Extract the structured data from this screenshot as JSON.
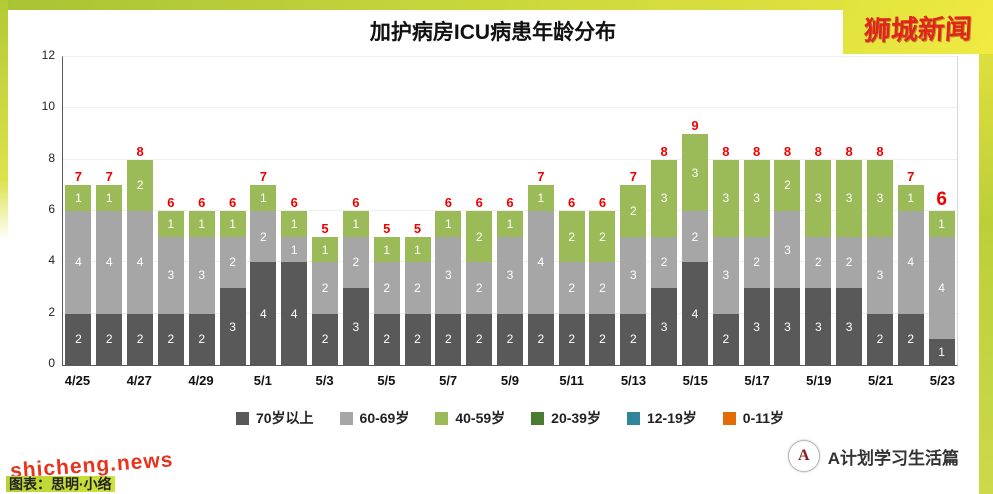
{
  "header": {
    "brand": "狮城新闻"
  },
  "chart_data": {
    "type": "bar",
    "stacked": true,
    "title": "加护病房ICU病患年龄分布",
    "x": [
      "4/25",
      "4/26",
      "4/27",
      "4/28",
      "4/29",
      "4/30",
      "5/1",
      "5/2",
      "5/3",
      "5/4",
      "5/5",
      "5/6",
      "5/7",
      "5/8",
      "5/9",
      "5/10",
      "5/11",
      "5/12",
      "5/13",
      "5/14",
      "5/15",
      "5/16",
      "5/17",
      "5/18",
      "5/19",
      "5/20",
      "5/21",
      "5/22",
      "5/23"
    ],
    "x_tick_step": 2,
    "ylim": [
      0,
      12
    ],
    "yticks": [
      0,
      2,
      4,
      6,
      8,
      10,
      12
    ],
    "grid": true,
    "legend_position": "bottom",
    "total_label_color": "#f00000",
    "emphasize_last_total": true,
    "series": [
      {
        "name": "70岁以上",
        "color": "#595959",
        "values": [
          2,
          2,
          2,
          2,
          2,
          3,
          4,
          4,
          2,
          3,
          2,
          2,
          2,
          2,
          2,
          2,
          2,
          2,
          2,
          3,
          4,
          2,
          3,
          3,
          3,
          3,
          2,
          2,
          1
        ]
      },
      {
        "name": "60-69岁",
        "color": "#a6a6a6",
        "values": [
          4,
          4,
          4,
          3,
          3,
          2,
          2,
          1,
          2,
          2,
          2,
          2,
          3,
          2,
          3,
          4,
          2,
          2,
          3,
          2,
          2,
          3,
          2,
          3,
          2,
          2,
          3,
          4,
          4
        ]
      },
      {
        "name": "40-59岁",
        "color": "#9bbb59",
        "values": [
          1,
          1,
          2,
          1,
          1,
          1,
          1,
          1,
          1,
          1,
          1,
          1,
          1,
          2,
          1,
          1,
          2,
          2,
          2,
          3,
          3,
          3,
          3,
          2,
          3,
          3,
          3,
          1,
          1
        ]
      },
      {
        "name": "20-39岁",
        "color": "#4a7c2f",
        "values": [
          0,
          0,
          0,
          0,
          0,
          0,
          0,
          0,
          0,
          0,
          0,
          0,
          0,
          0,
          0,
          0,
          0,
          0,
          0,
          0,
          0,
          0,
          0,
          0,
          0,
          0,
          0,
          0,
          0
        ]
      },
      {
        "name": "12-19岁",
        "color": "#31859b",
        "values": [
          0,
          0,
          0,
          0,
          0,
          0,
          0,
          0,
          0,
          0,
          0,
          0,
          0,
          0,
          0,
          0,
          0,
          0,
          0,
          0,
          0,
          0,
          0,
          0,
          0,
          0,
          0,
          0,
          0
        ]
      },
      {
        "name": "0-11岁",
        "color": "#e36c09",
        "values": [
          0,
          0,
          0,
          0,
          0,
          0,
          0,
          0,
          0,
          0,
          0,
          0,
          0,
          0,
          0,
          0,
          0,
          0,
          0,
          0,
          0,
          0,
          0,
          0,
          0,
          0,
          0,
          0,
          0
        ]
      }
    ],
    "totals": [
      7,
      7,
      8,
      6,
      6,
      6,
      7,
      6,
      5,
      6,
      5,
      5,
      6,
      6,
      6,
      7,
      6,
      6,
      7,
      8,
      9,
      8,
      8,
      8,
      8,
      8,
      8,
      7,
      6
    ]
  },
  "footer": {
    "watermark": "shicheng.news",
    "credit": "图表：思明·小络",
    "channel": "A计划学习生活篇",
    "logo_glyph": "A"
  }
}
